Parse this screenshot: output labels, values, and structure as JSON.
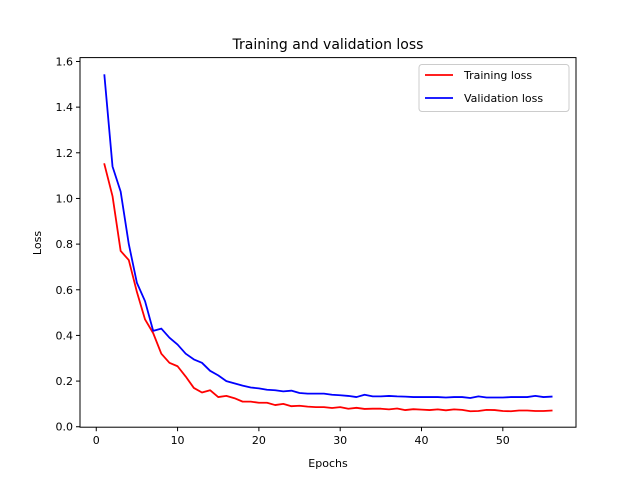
{
  "chart_data": {
    "type": "line",
    "title": "Training and validation loss",
    "xlabel": "Epochs",
    "ylabel": "Loss",
    "xlim": [
      -2,
      59
    ],
    "ylim": [
      -0.002,
      1.617
    ],
    "xticks": [
      0,
      10,
      20,
      30,
      40,
      50
    ],
    "yticks": [
      0.0,
      0.2,
      0.4,
      0.6,
      0.8,
      1.0,
      1.2,
      1.4,
      1.6
    ],
    "ytick_labels": [
      "0.0",
      "0.2",
      "0.4",
      "0.6",
      "0.8",
      "1.0",
      "1.2",
      "1.4",
      "1.6"
    ],
    "grid": false,
    "legend_position": "top-right",
    "x": [
      1,
      2,
      3,
      4,
      5,
      6,
      7,
      8,
      9,
      10,
      11,
      12,
      13,
      14,
      15,
      16,
      17,
      18,
      19,
      20,
      21,
      22,
      23,
      24,
      25,
      26,
      27,
      28,
      29,
      30,
      31,
      32,
      33,
      34,
      35,
      36,
      37,
      38,
      39,
      40,
      41,
      42,
      43,
      44,
      45,
      46,
      47,
      48,
      49,
      50,
      51,
      52,
      53,
      54,
      55,
      56
    ],
    "series": [
      {
        "name": "Training loss",
        "color": "#ff0000",
        "values": [
          1.15,
          1.01,
          0.77,
          0.73,
          0.59,
          0.47,
          0.41,
          0.32,
          0.28,
          0.265,
          0.22,
          0.17,
          0.15,
          0.16,
          0.13,
          0.135,
          0.125,
          0.11,
          0.11,
          0.105,
          0.105,
          0.095,
          0.1,
          0.09,
          0.092,
          0.088,
          0.086,
          0.086,
          0.082,
          0.086,
          0.079,
          0.083,
          0.078,
          0.079,
          0.079,
          0.076,
          0.08,
          0.073,
          0.077,
          0.075,
          0.073,
          0.076,
          0.072,
          0.076,
          0.074,
          0.068,
          0.069,
          0.074,
          0.073,
          0.069,
          0.068,
          0.071,
          0.071,
          0.069,
          0.069,
          0.071
        ]
      },
      {
        "name": "Validation loss",
        "color": "#0000ff",
        "values": [
          1.54,
          1.14,
          1.03,
          0.8,
          0.63,
          0.55,
          0.42,
          0.43,
          0.39,
          0.36,
          0.32,
          0.295,
          0.28,
          0.245,
          0.225,
          0.2,
          0.19,
          0.18,
          0.172,
          0.168,
          0.162,
          0.16,
          0.155,
          0.158,
          0.148,
          0.145,
          0.145,
          0.145,
          0.14,
          0.138,
          0.135,
          0.13,
          0.14,
          0.133,
          0.133,
          0.135,
          0.133,
          0.132,
          0.13,
          0.13,
          0.13,
          0.13,
          0.128,
          0.13,
          0.13,
          0.126,
          0.133,
          0.128,
          0.128,
          0.128,
          0.13,
          0.13,
          0.13,
          0.135,
          0.13,
          0.132
        ]
      }
    ]
  }
}
